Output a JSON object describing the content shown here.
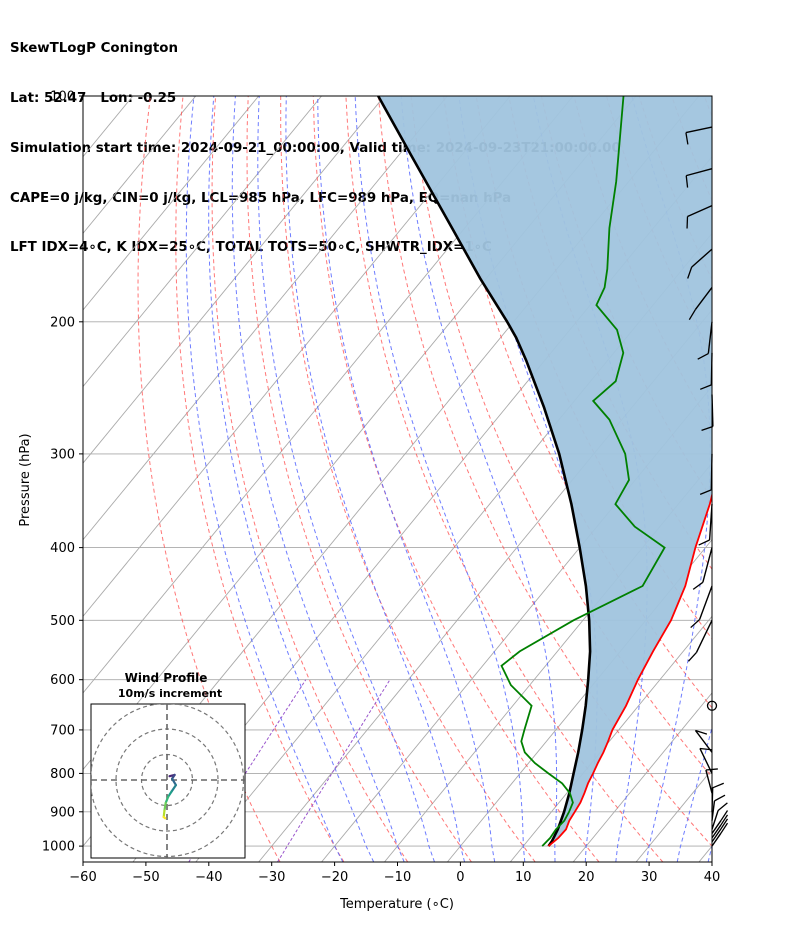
{
  "header": {
    "line1": "SkewTLogP Conington",
    "line2": "Lat: 52.47   Lon: -0.25",
    "line3": "Simulation start time: 2024-09-21_00:00:00, Valid time: 2024-09-23T21:00:00.00",
    "line4": "CAPE=0 j/kg, CIN=0 j/kg, LCL=985 hPa, LFC=989 hPa, EQ=nan hPa",
    "line5": "LFT IDX=4∘C, K IDX=25∘C, TOTAL TOTS=50∘C, SHWTR_IDX=1∘C"
  },
  "chart_data": [
    {
      "type": "line",
      "subtype": "skew-t log-p",
      "xlabel": "Temperature (∘C)",
      "ylabel": "Pressure (hPa)",
      "xlim": [
        -60,
        40
      ],
      "ylim": [
        1050,
        100
      ],
      "y_scale": "log",
      "x_ticks": [
        "−60",
        "−50",
        "−40",
        "−30",
        "−20",
        "−10",
        "0",
        "10",
        "20",
        "30",
        "40"
      ],
      "x_tick_values": [
        -60,
        -50,
        -40,
        -30,
        -20,
        -10,
        0,
        10,
        20,
        30,
        40
      ],
      "y_ticks": [
        "100",
        "200",
        "300",
        "400",
        "500",
        "600",
        "700",
        "800",
        "900",
        "1000"
      ],
      "y_tick_values": [
        100,
        200,
        300,
        400,
        500,
        600,
        700,
        800,
        900,
        1000
      ],
      "grid": true,
      "colors": {
        "temperature": "#ff0000",
        "dewpoint": "#008000",
        "parcel": "#000000",
        "fill": "#a0c4de",
        "dry_adiabats": "#ff5555",
        "moist_adiabats": "#5566ff",
        "mixing_ratio": "#9955cc",
        "isotherms": "#aaaaaa"
      },
      "series": [
        {
          "role": "temperature",
          "points": [
            [
              14.0,
              1000
            ],
            [
              14.5,
              975
            ],
            [
              14.6,
              950
            ],
            [
              14.0,
              925
            ],
            [
              13.7,
              900
            ],
            [
              13.4,
              875
            ],
            [
              12.8,
              850
            ],
            [
              12.1,
              825
            ],
            [
              11.6,
              800
            ],
            [
              11.0,
              775
            ],
            [
              10.5,
              750
            ],
            [
              9.8,
              725
            ],
            [
              9.0,
              700
            ],
            [
              8.0,
              650
            ],
            [
              6.5,
              600
            ],
            [
              5.2,
              550
            ],
            [
              4.0,
              500
            ],
            [
              1.8,
              450
            ],
            [
              -1.6,
              400
            ],
            [
              -5.0,
              350
            ],
            [
              -9.5,
              300
            ],
            [
              -13.5,
              270
            ],
            [
              -18.0,
              250
            ],
            [
              -21.0,
              225
            ],
            [
              -22.0,
              210
            ],
            [
              -23.0,
              200
            ],
            [
              -28.0,
              180
            ],
            [
              -33.0,
              160
            ],
            [
              -40.0,
              140
            ],
            [
              -47.0,
              120
            ],
            [
              -54.0,
              100
            ]
          ]
        },
        {
          "role": "dewpoint",
          "points": [
            [
              13.0,
              1000
            ],
            [
              13.2,
              975
            ],
            [
              13.0,
              950
            ],
            [
              13.2,
              925
            ],
            [
              12.8,
              900
            ],
            [
              12.2,
              875
            ],
            [
              10.5,
              850
            ],
            [
              8.0,
              825
            ],
            [
              4.5,
              800
            ],
            [
              1.0,
              775
            ],
            [
              -2.0,
              750
            ],
            [
              -4.0,
              725
            ],
            [
              -5.0,
              700
            ],
            [
              -7.0,
              650
            ],
            [
              -13.0,
              610
            ],
            [
              -17.0,
              575
            ],
            [
              -16.0,
              550
            ],
            [
              -11.5,
              500
            ],
            [
              -5.0,
              450
            ],
            [
              -6.5,
              400
            ],
            [
              -14.0,
              375
            ],
            [
              -20.0,
              350
            ],
            [
              -21.0,
              325
            ],
            [
              -25.0,
              300
            ],
            [
              -32.0,
              270
            ],
            [
              -37.0,
              255
            ],
            [
              -36.0,
              240
            ],
            [
              -38.5,
              220
            ],
            [
              -42.5,
              205
            ],
            [
              -49.0,
              190
            ],
            [
              -50.0,
              180
            ],
            [
              -52.0,
              170
            ],
            [
              -57.0,
              150
            ],
            [
              -62.0,
              130
            ],
            [
              -72.0,
              100
            ]
          ]
        },
        {
          "role": "parcel",
          "points": [
            [
              14.0,
              1000
            ],
            [
              13.9,
              985
            ],
            [
              13.3,
              950
            ],
            [
              12.0,
              900
            ],
            [
              10.4,
              850
            ],
            [
              8.5,
              800
            ],
            [
              6.5,
              750
            ],
            [
              4.2,
              700
            ],
            [
              1.6,
              650
            ],
            [
              -1.4,
              600
            ],
            [
              -4.8,
              550
            ],
            [
              -9.0,
              500
            ],
            [
              -14.0,
              450
            ],
            [
              -20.0,
              400
            ],
            [
              -27.0,
              350
            ],
            [
              -35.5,
              300
            ],
            [
              -44.0,
              260
            ],
            [
              -53.0,
              225
            ],
            [
              -57.5,
              210
            ],
            [
              -61.0,
              200
            ],
            [
              -71.0,
              175
            ],
            [
              -82.0,
              150
            ],
            [
              -98.0,
              120
            ],
            [
              -111.0,
              100
            ]
          ]
        }
      ]
    },
    {
      "type": "scatter",
      "subtype": "hodograph",
      "title": "Wind Profile",
      "subtitle": "10m/s increment",
      "rings_ms": [
        10,
        20,
        30
      ],
      "points": [
        [
          1.0,
          1.5
        ],
        [
          3.0,
          2.0
        ],
        [
          2.0,
          0.5
        ],
        [
          3.5,
          -2.0
        ],
        [
          1.8,
          -4.5
        ],
        [
          0.5,
          -6.5
        ],
        [
          -0.5,
          -9.0
        ],
        [
          -1.0,
          -12.0
        ],
        [
          -1.3,
          -14.5
        ],
        [
          -0.7,
          -15.0
        ]
      ]
    }
  ]
}
